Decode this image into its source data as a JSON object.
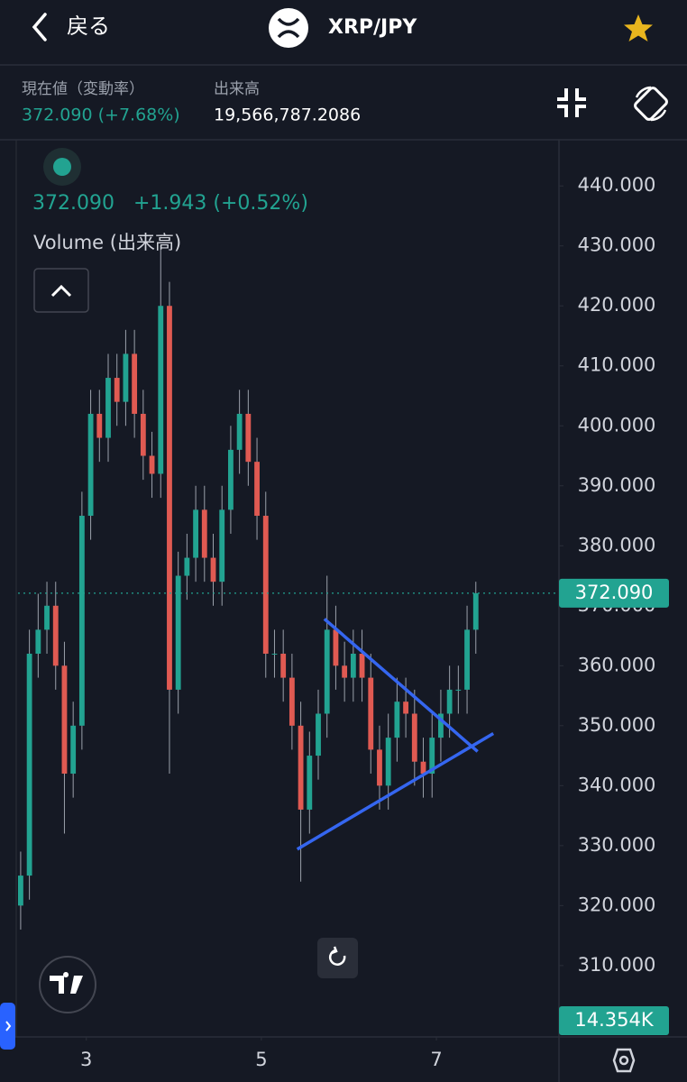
{
  "header": {
    "back": "戻る",
    "pair": "XRP/JPY"
  },
  "info": {
    "price_label": "現在値（変動率）",
    "price_value": "372.090 (+7.68%)",
    "volume_label": "出来高",
    "volume_value": "19,566,787.2086"
  },
  "chart_data": {
    "type": "candlestick",
    "legend_price": "372.090",
    "legend_change": "+1.943 (+0.52%)",
    "volume_title": "Volume (出来高)",
    "last_price_label": "372.090",
    "volume_last_label": "14.354K",
    "up_color": "#22a391",
    "down_color": "#e05a52",
    "trend_color": "#3566f0",
    "x": [
      2.25,
      2.35,
      2.45,
      2.55,
      2.65,
      2.75,
      2.85,
      2.95,
      3.05,
      3.15,
      3.25,
      3.35,
      3.45,
      3.55,
      3.65,
      3.75,
      3.85,
      3.95,
      4.05,
      4.15,
      4.25,
      4.35,
      4.45,
      4.55,
      4.65,
      4.75,
      4.85,
      4.95,
      5.05,
      5.15,
      5.25,
      5.35,
      5.45,
      5.55,
      5.65,
      5.75,
      5.85,
      5.95,
      6.05,
      6.15,
      6.25,
      6.35,
      6.45,
      6.55,
      6.65,
      6.75,
      6.85,
      6.95,
      7.05,
      7.15,
      7.25,
      7.35,
      7.45
    ],
    "open": [
      320,
      325,
      362,
      366,
      370,
      360,
      342,
      350,
      385,
      402,
      398,
      408,
      404,
      412,
      402,
      395,
      392,
      420,
      356,
      375,
      378,
      386,
      378,
      374,
      386,
      396,
      402,
      394,
      385,
      362,
      362,
      358,
      350,
      336,
      345,
      352,
      366,
      360,
      358,
      362,
      358,
      346,
      340,
      348,
      354,
      352,
      344,
      342,
      348,
      352,
      356,
      356,
      366
    ],
    "high": [
      329,
      366,
      372,
      374,
      374,
      364,
      354,
      389,
      406,
      406,
      412,
      412,
      416,
      416,
      406,
      399,
      430,
      424,
      379,
      382,
      390,
      390,
      382,
      390,
      400,
      406,
      406,
      398,
      389,
      366,
      366,
      362,
      354,
      349,
      356,
      375,
      370,
      364,
      366,
      366,
      362,
      350,
      352,
      358,
      358,
      356,
      348,
      352,
      356,
      360,
      360,
      370,
      374
    ],
    "low": [
      316,
      321,
      358,
      362,
      356,
      332,
      338,
      346,
      381,
      394,
      394,
      400,
      400,
      398,
      391,
      388,
      388,
      342,
      352,
      371,
      374,
      374,
      370,
      370,
      382,
      392,
      390,
      381,
      358,
      358,
      354,
      346,
      324,
      332,
      341,
      348,
      356,
      354,
      354,
      354,
      342,
      336,
      336,
      344,
      348,
      340,
      338,
      338,
      344,
      348,
      352,
      352,
      362
    ],
    "close": [
      325,
      362,
      366,
      370,
      360,
      342,
      350,
      385,
      402,
      398,
      408,
      404,
      412,
      402,
      395,
      392,
      420,
      356,
      375,
      378,
      386,
      378,
      374,
      386,
      396,
      402,
      394,
      385,
      362,
      362,
      358,
      350,
      336,
      345,
      352,
      366,
      360,
      358,
      362,
      358,
      346,
      340,
      348,
      354,
      352,
      344,
      342,
      348,
      352,
      356,
      356,
      366,
      372.09
    ],
    "trendlines": [
      {
        "x": [
          5.72,
          7.47
        ],
        "y": [
          367.8,
          345.7
        ]
      },
      {
        "x": [
          5.41,
          7.65
        ],
        "y": [
          329.4,
          348.7
        ]
      }
    ],
    "xlim": [
      2.22,
      8.4
    ],
    "xticks": [
      3,
      5,
      7
    ],
    "ylim": [
      298.1,
      447.7
    ],
    "yticks": [
      {
        "value": 310,
        "label": "310.000"
      },
      {
        "value": 320,
        "label": "320.000"
      },
      {
        "value": 330,
        "label": "330.000"
      },
      {
        "value": 340,
        "label": "340.000"
      },
      {
        "value": 350,
        "label": "350.000"
      },
      {
        "value": 360,
        "label": "360.000"
      },
      {
        "value": 370,
        "label": "370.000"
      },
      {
        "value": 380,
        "label": "380.000"
      },
      {
        "value": 390,
        "label": "390.000"
      },
      {
        "value": 400,
        "label": "400.000"
      },
      {
        "value": 410,
        "label": "410.000"
      },
      {
        "value": 420,
        "label": "420.000"
      },
      {
        "value": 430,
        "label": "430.000"
      },
      {
        "value": 440,
        "label": "440.000"
      }
    ],
    "grid": false
  }
}
